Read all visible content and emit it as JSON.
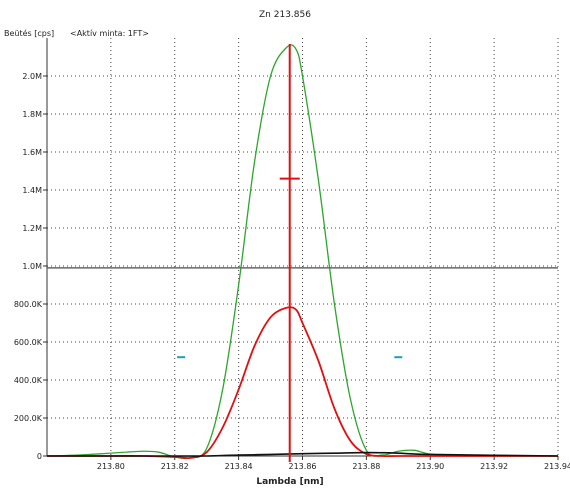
{
  "chart_data": {
    "type": "line",
    "title": "Zn 213.856",
    "ylabel": "Beütés [cps]",
    "subtitle": "<Aktív minta: 1FT>",
    "xlabel": "Lambda [nm]",
    "xlim": [
      213.78,
      213.94
    ],
    "ylim": [
      0,
      2200000
    ],
    "x_ticks": [
      {
        "value": 213.8,
        "label": "213.80"
      },
      {
        "value": 213.82,
        "label": "213.82"
      },
      {
        "value": 213.84,
        "label": "213.84"
      },
      {
        "value": 213.86,
        "label": "213.86"
      },
      {
        "value": 213.88,
        "label": "213.88"
      },
      {
        "value": 213.9,
        "label": "213.90"
      },
      {
        "value": 213.92,
        "label": "213.92"
      },
      {
        "value": 213.94,
        "label": "213.94"
      }
    ],
    "y_ticks": [
      {
        "value": 0,
        "label": "0"
      },
      {
        "value": 200000,
        "label": "200.0K"
      },
      {
        "value": 400000,
        "label": "400.0K"
      },
      {
        "value": 600000,
        "label": "600.0K"
      },
      {
        "value": 800000,
        "label": "800.0K"
      },
      {
        "value": 1000000,
        "label": "1.0M"
      },
      {
        "value": 1200000,
        "label": "1.2M"
      },
      {
        "value": 1400000,
        "label": "1.4M"
      },
      {
        "value": 1600000,
        "label": "1.6M"
      },
      {
        "value": 1800000,
        "label": "1.8M"
      },
      {
        "value": 2000000,
        "label": "2.0M"
      }
    ],
    "grid": true,
    "threshold_line": 990000,
    "peak_marker_x": 213.856,
    "peak_tick_y": 1460000,
    "background_markers": [
      {
        "x": 213.822,
        "y": 520000,
        "color": "#1aa0b0"
      },
      {
        "x": 213.89,
        "y": 520000,
        "color": "#1aa0b0"
      }
    ],
    "series": [
      {
        "color": "#2ea52e",
        "x": [
          213.78,
          213.79,
          213.8,
          213.81,
          213.815,
          213.82,
          213.825,
          213.83,
          213.835,
          213.84,
          213.845,
          213.85,
          213.855,
          213.858,
          213.86,
          213.865,
          213.87,
          213.875,
          213.88,
          213.885,
          213.89,
          213.895,
          213.9,
          213.91,
          213.92,
          213.93,
          213.94
        ],
        "y": [
          0,
          5000,
          15000,
          25000,
          20000,
          -5000,
          -10000,
          40000,
          350000,
          900000,
          1550000,
          2000000,
          2150000,
          2140000,
          2000000,
          1450000,
          800000,
          300000,
          30000,
          5000,
          25000,
          30000,
          10000,
          0,
          0,
          0,
          0
        ]
      },
      {
        "color": "#e01010",
        "x": [
          213.78,
          213.8,
          213.81,
          213.82,
          213.825,
          213.83,
          213.835,
          213.84,
          213.845,
          213.85,
          213.855,
          213.858,
          213.86,
          213.865,
          213.87,
          213.875,
          213.88,
          213.885,
          213.89,
          213.9,
          213.92,
          213.94
        ],
        "y": [
          0,
          0,
          0,
          -5000,
          -10000,
          20000,
          150000,
          350000,
          580000,
          730000,
          780000,
          770000,
          700000,
          500000,
          250000,
          80000,
          10000,
          0,
          0,
          0,
          0,
          0
        ]
      },
      {
        "color": "#111111",
        "x": [
          213.78,
          213.82,
          213.83,
          213.84,
          213.85,
          213.86,
          213.87,
          213.88,
          213.89,
          213.9,
          213.94
        ],
        "y": [
          0,
          0,
          0,
          5000,
          8000,
          12000,
          15000,
          18000,
          15000,
          8000,
          0
        ]
      }
    ]
  }
}
